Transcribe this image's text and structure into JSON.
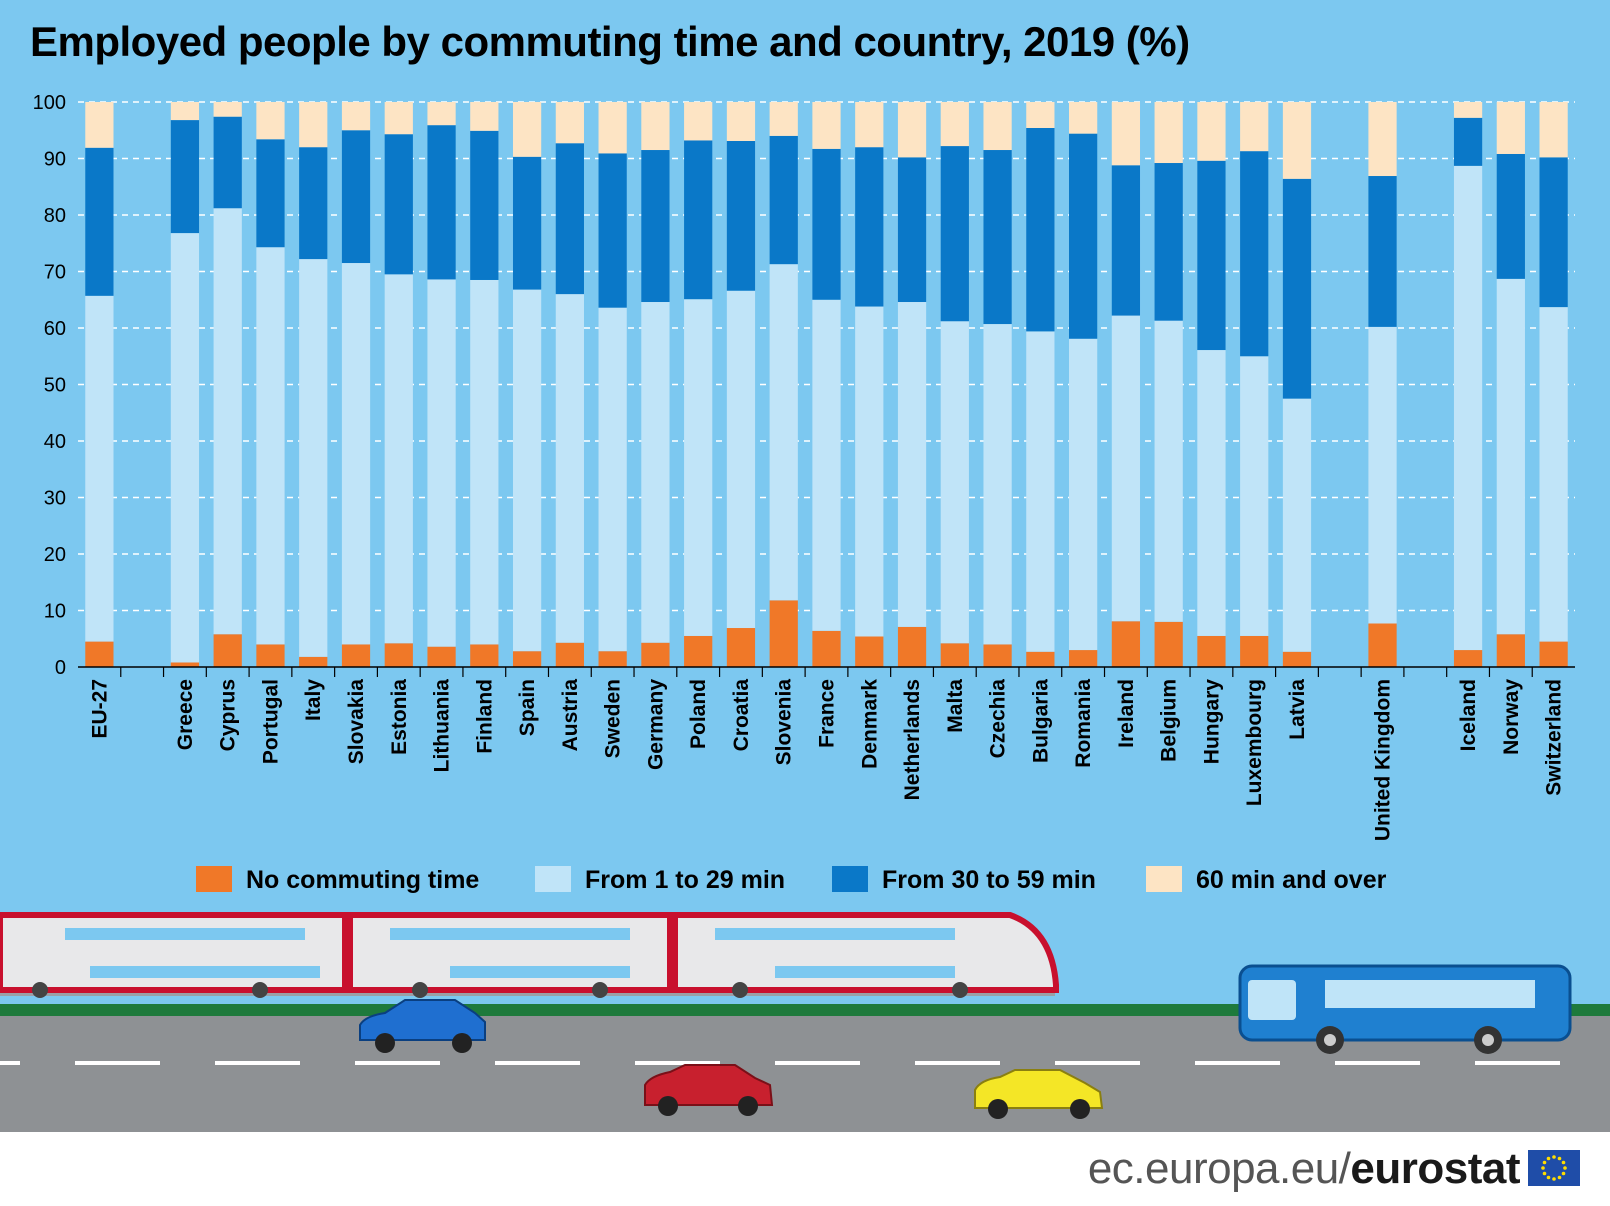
{
  "title": "Employed people by commuting time and country, 2019 (%)",
  "footer": {
    "site": "ec.europa.eu/",
    "brand": "eurostat"
  },
  "colors": {
    "background": "#7cc8f0",
    "no_commuting": "#f07828",
    "from_1_to_29": "#c0e4f8",
    "from_30_to_59": "#0a78c8",
    "sixty_plus": "#fde4c4",
    "gridline": "#ffffff"
  },
  "chart_data": {
    "type": "bar",
    "stacked": true,
    "title": "Employed people by commuting time and country, 2019 (%)",
    "ylim": [
      0,
      100
    ],
    "yticks": [
      0,
      10,
      20,
      30,
      40,
      50,
      60,
      70,
      80,
      90,
      100
    ],
    "grid": true,
    "legend_position": "bottom",
    "categories": [
      "EU-27",
      "",
      "Greece",
      "Cyprus",
      "Portugal",
      "Italy",
      "Slovakia",
      "Estonia",
      "Lithuania",
      "Finland",
      "Spain",
      "Austria",
      "Sweden",
      "Germany",
      "Poland",
      "Croatia",
      "Slovenia",
      "France",
      "Denmark",
      "Netherlands",
      "Malta",
      "Czechia",
      "Bulgaria",
      "Romania",
      "Ireland",
      "Belgium",
      "Hungary",
      "Luxembourg",
      "Latvia",
      "",
      "United Kingdom",
      "",
      "Iceland",
      "Norway",
      "Switzerland"
    ],
    "series": [
      {
        "name": "No commuting time",
        "color_key": "no_commuting",
        "values": [
          4.5,
          null,
          0.8,
          5.8,
          4.0,
          1.8,
          4.0,
          4.2,
          3.6,
          4.0,
          2.8,
          4.3,
          2.8,
          4.3,
          5.5,
          6.9,
          11.8,
          6.4,
          5.4,
          7.1,
          4.2,
          4.0,
          2.7,
          3.0,
          8.1,
          8.0,
          5.5,
          5.5,
          2.7,
          null,
          7.7,
          null,
          3.0,
          5.8,
          4.5
        ]
      },
      {
        "name": "From 1 to 29 min",
        "color_key": "from_1_to_29",
        "values": [
          61.2,
          null,
          76.0,
          75.4,
          70.3,
          70.4,
          67.5,
          65.3,
          65.0,
          64.5,
          64.0,
          61.7,
          60.8,
          60.3,
          59.6,
          59.7,
          59.5,
          58.6,
          58.4,
          57.5,
          57.0,
          56.7,
          56.7,
          55.1,
          54.1,
          53.3,
          50.6,
          49.5,
          44.8,
          null,
          52.5,
          null,
          85.7,
          62.9,
          59.2
        ]
      },
      {
        "name": "From 30 to 59 min",
        "color_key": "from_30_to_59",
        "values": [
          26.2,
          null,
          20.0,
          16.2,
          19.1,
          19.8,
          23.5,
          24.8,
          27.3,
          26.4,
          23.5,
          26.7,
          27.3,
          26.9,
          28.1,
          26.5,
          22.7,
          26.7,
          28.2,
          25.6,
          31.0,
          30.8,
          36.0,
          36.3,
          26.6,
          27.9,
          33.5,
          36.3,
          38.9,
          null,
          26.7,
          null,
          8.5,
          22.1,
          26.5
        ]
      },
      {
        "name": "60 min and over",
        "color_key": "sixty_plus",
        "values": [
          8.1,
          null,
          3.2,
          2.6,
          6.6,
          8.0,
          5.0,
          5.7,
          4.1,
          5.1,
          9.7,
          7.3,
          9.1,
          8.5,
          6.8,
          6.9,
          6.0,
          8.3,
          8.0,
          9.8,
          7.8,
          8.5,
          4.6,
          5.6,
          11.2,
          10.8,
          10.4,
          8.7,
          13.6,
          null,
          13.1,
          null,
          2.8,
          9.2,
          9.8
        ]
      }
    ],
    "legend": [
      "No commuting time",
      "From 1 to 29 min",
      "From 30 to 59 min",
      "60 min and over"
    ]
  }
}
